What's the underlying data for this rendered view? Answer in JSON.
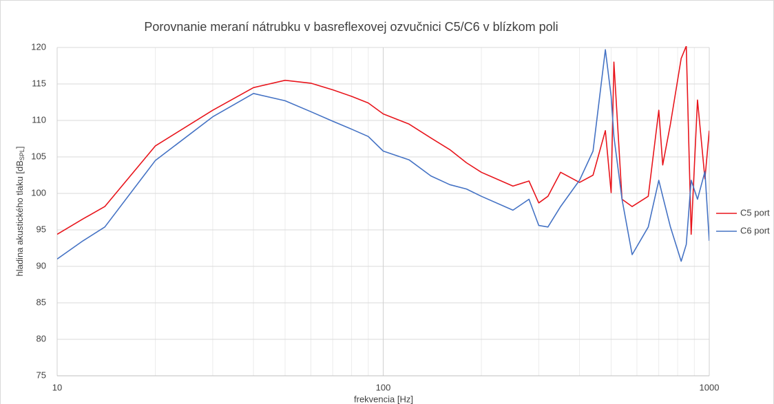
{
  "chart_data": {
    "type": "line",
    "title": "Porovnanie meraní nátrubku v basreflexovej ozvučnici C5/C6 v blízkom poli",
    "x_label": "frekvencia [Hz]",
    "y_label": [
      "hladina akustického tlaku [dB",
      "SPL",
      "]"
    ],
    "x": [
      10,
      12,
      14,
      20,
      30,
      40,
      50,
      60,
      70,
      80,
      90,
      100,
      120,
      140,
      160,
      180,
      200,
      250,
      280,
      300,
      320,
      350,
      400,
      440,
      480,
      500,
      510,
      540,
      580,
      650,
      700,
      720,
      760,
      820,
      850,
      880,
      920,
      970,
      1000
    ],
    "series": [
      {
        "name": "C5 port",
        "color": "#e8141b",
        "values": [
          94.4,
          96.5,
          98.2,
          106.5,
          111.4,
          114.5,
          115.5,
          115.1,
          114.2,
          113.3,
          112.4,
          110.9,
          109.5,
          107.6,
          106,
          104.2,
          102.9,
          101,
          101.7,
          98.7,
          99.6,
          102.9,
          101.5,
          102.5,
          108.6,
          100.1,
          118,
          99.2,
          98.2,
          99.6,
          111.4,
          103.9,
          109.5,
          118.5,
          120.2,
          94.4,
          112.8,
          102,
          108.6
        ]
      },
      {
        "name": "C6 port",
        "color": "#4472c4",
        "values": [
          91,
          93.5,
          95.4,
          104.5,
          110.5,
          113.7,
          112.7,
          111.2,
          109.9,
          108.8,
          107.8,
          105.8,
          104.6,
          102.4,
          101.2,
          100.6,
          99.6,
          97.7,
          99.2,
          95.6,
          95.4,
          98.2,
          101.8,
          105.8,
          119.7,
          113.3,
          107.8,
          99.2,
          91.6,
          95.4,
          101.8,
          99.6,
          95.4,
          90.7,
          93,
          101.8,
          99.2,
          103,
          93.5
        ]
      }
    ],
    "xlim": [
      10,
      1000
    ],
    "xscale": "log",
    "xticks": [
      10,
      100,
      1000
    ],
    "xminor": [
      20,
      30,
      40,
      50,
      60,
      70,
      80,
      90,
      200,
      300,
      400,
      500,
      600,
      700,
      800,
      900
    ],
    "ylim": [
      75,
      120
    ],
    "yticks": [
      75,
      80,
      85,
      90,
      95,
      100,
      105,
      110,
      115,
      120
    ],
    "grid": true,
    "legend": "right"
  }
}
